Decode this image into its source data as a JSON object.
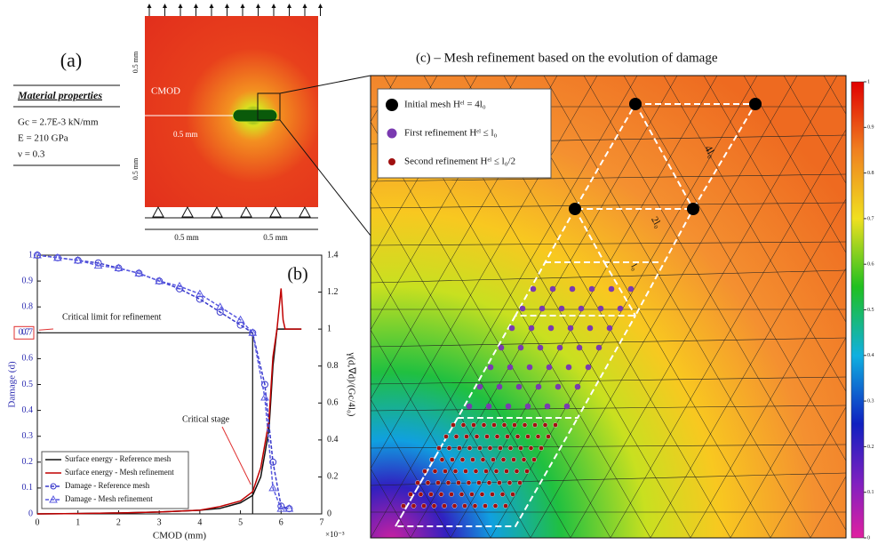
{
  "panel_a": {
    "label": "(a)",
    "properties_title": "Material properties",
    "properties": [
      "Gc = 2.7E-3 kN/mm",
      "E = 210 GPa",
      "ν = 0.3"
    ],
    "cmod": "CMOD",
    "dims": [
      "0.5 mm",
      "0.5 mm",
      "0.5 mm",
      "0.5 mm",
      "0.5 mm"
    ]
  },
  "chart_data": {
    "type": "line",
    "label": "(b)",
    "xlabel": "CMOD (mm)",
    "x_offset_text": "×10⁻³",
    "ylabel": "Damage (d)",
    "y2label": "γ(d,∇d)/(Gc/4l₀)",
    "xlim": [
      0,
      7
    ],
    "xticks": [
      0,
      1,
      2,
      3,
      4,
      5,
      6,
      7
    ],
    "ylim": [
      0,
      1
    ],
    "yticks": [
      0,
      0.1,
      0.2,
      0.3,
      0.4,
      0.5,
      0.6,
      0.7,
      0.8,
      0.9,
      1
    ],
    "y2lim": [
      0,
      1.4
    ],
    "y2ticks": [
      0,
      0.2,
      0.4,
      0.6,
      0.8,
      1,
      1.2,
      1.4
    ],
    "critical_limit": 0.7,
    "annotations": [
      "Critical limit for refinement",
      "Critical stage"
    ],
    "legend": "lower left",
    "series": [
      {
        "name": "Surface energy - Reference mesh",
        "color": "#111111",
        "axis": "y2",
        "x": [
          0,
          1,
          2,
          3,
          4,
          4.5,
          5,
          5.3,
          5.5,
          5.7,
          5.8,
          5.9,
          6.0,
          6.5
        ],
        "values": [
          0,
          0.002,
          0.005,
          0.01,
          0.02,
          0.03,
          0.06,
          0.1,
          0.2,
          0.45,
          0.8,
          1.0,
          1.0,
          1.0
        ]
      },
      {
        "name": "Surface energy - Mesh refinement",
        "color": "#c00000",
        "axis": "y2",
        "x": [
          0,
          1,
          2,
          3,
          4,
          4.5,
          5,
          5.3,
          5.5,
          5.7,
          5.8,
          5.9,
          6.0,
          6.05,
          6.1,
          6.5
        ],
        "values": [
          0,
          0.002,
          0.005,
          0.01,
          0.02,
          0.04,
          0.07,
          0.12,
          0.25,
          0.5,
          0.85,
          1.0,
          1.22,
          1.05,
          1.0,
          1.0
        ]
      },
      {
        "name": "Damage - Reference mesh",
        "color": "#3a3acc",
        "axis": "y",
        "marker": "circle",
        "x": [
          0,
          0.5,
          1,
          1.5,
          2,
          2.5,
          3,
          3.5,
          4,
          4.5,
          5,
          5.3,
          5.6,
          5.8,
          6.0,
          6.2
        ],
        "values": [
          1,
          0.99,
          0.98,
          0.97,
          0.95,
          0.93,
          0.9,
          0.87,
          0.83,
          0.78,
          0.73,
          0.7,
          0.5,
          0.2,
          0.03,
          0.02
        ]
      },
      {
        "name": "Damage - Mesh refinement",
        "color": "#5a5ae0",
        "axis": "y",
        "marker": "triangle",
        "x": [
          0,
          0.5,
          1,
          1.5,
          2,
          2.5,
          3,
          3.5,
          4,
          4.5,
          5,
          5.3,
          5.6,
          5.8,
          6.0,
          6.2
        ],
        "values": [
          1,
          0.99,
          0.98,
          0.96,
          0.95,
          0.93,
          0.9,
          0.88,
          0.85,
          0.8,
          0.75,
          0.7,
          0.45,
          0.1,
          0.02,
          0.02
        ]
      }
    ]
  },
  "panel_c": {
    "title": "(c) – Mesh refinement based on the evolution of damage",
    "legend": [
      "Initial mesh Hᵉˡ = 4l₀",
      "First refinement Hᵉˡ ≤ l₀",
      "Second refinement Hᵉˡ ≤ l₀/2"
    ],
    "lengths": [
      "4l₀",
      "2l₀",
      "l₀"
    ],
    "colorbar_ticks": [
      0,
      0.1,
      0.2,
      0.3,
      0.4,
      0.5,
      0.6,
      0.7,
      0.8,
      0.9,
      1
    ]
  }
}
